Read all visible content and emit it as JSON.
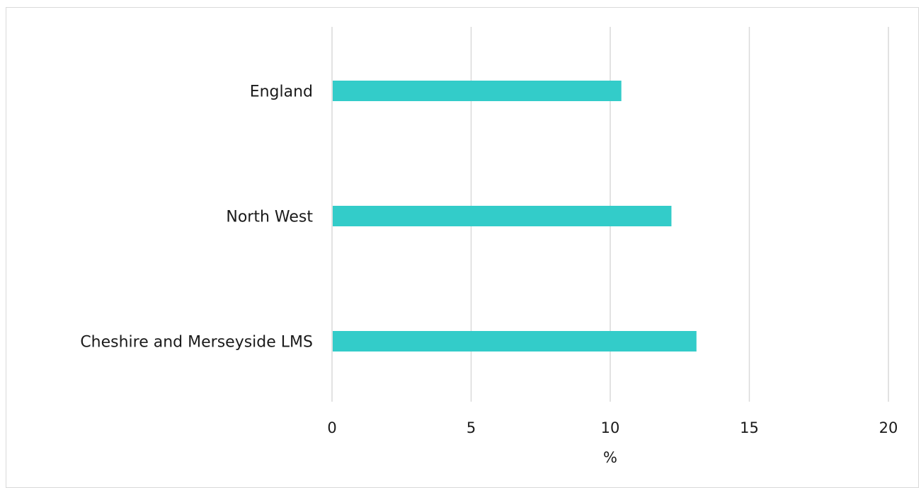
{
  "chart_data": {
    "type": "bar",
    "orientation": "horizontal",
    "categories": [
      "England",
      "North West",
      "Cheshire and Merseyside LMS"
    ],
    "values": [
      10.4,
      12.2,
      13.1
    ],
    "xlabel": "%",
    "ylabel": "",
    "xlim": [
      0,
      20
    ],
    "xticks": [
      "0",
      "5",
      "10",
      "15",
      "20"
    ],
    "grid": "vertical",
    "legend": "none",
    "bar_color": "#33CCC9",
    "grid_color": "#D9D9D9"
  }
}
